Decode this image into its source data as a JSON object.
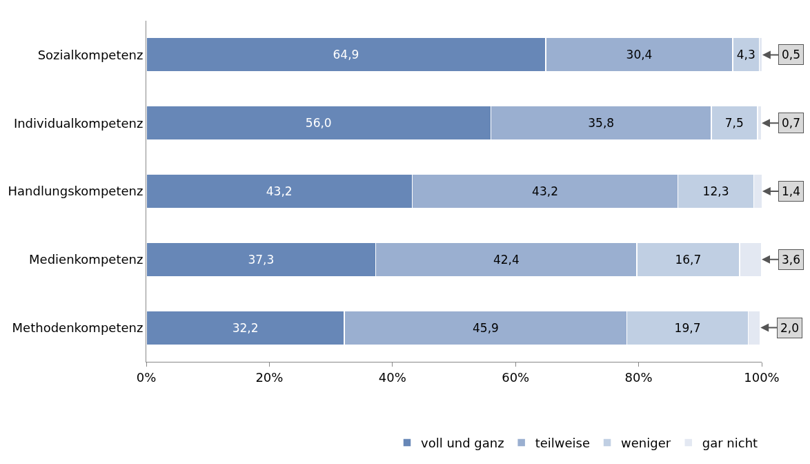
{
  "chart_data": {
    "type": "bar",
    "orientation": "horizontal",
    "stacked": true,
    "categories": [
      "Sozialkompetenz",
      "Individualkompetenz",
      "Handlungskompetenz",
      "Medienkompetenz",
      "Methodenkompetenz"
    ],
    "series": [
      {
        "name": "voll und ganz",
        "color": "#6787b7",
        "values": [
          64.9,
          56.0,
          43.2,
          37.3,
          32.2
        ],
        "value_labels": [
          "64,9",
          "56,0",
          "43,2",
          "37,3",
          "32,2"
        ]
      },
      {
        "name": "teilweise",
        "color": "#9aafd0",
        "values": [
          30.4,
          35.8,
          43.2,
          42.4,
          45.9
        ],
        "value_labels": [
          "30,4",
          "35,8",
          "43,2",
          "42,4",
          "45,9"
        ]
      },
      {
        "name": "weniger",
        "color": "#c0cfe3",
        "values": [
          4.3,
          7.5,
          12.3,
          16.7,
          19.7
        ],
        "value_labels": [
          "4,3",
          "7,5",
          "12,3",
          "16,7",
          "19,7"
        ]
      },
      {
        "name": "gar nicht",
        "color": "#e3e8f2",
        "values": [
          0.5,
          0.7,
          1.4,
          3.6,
          2.0
        ],
        "value_labels": [
          "0,5",
          "0,7",
          "1,4",
          "3,6",
          "2,0"
        ]
      }
    ],
    "xlim": [
      0,
      100
    ],
    "xticks": [
      {
        "value": 0,
        "label": "0%"
      },
      {
        "value": 20,
        "label": "20%"
      },
      {
        "value": 40,
        "label": "40%"
      },
      {
        "value": 60,
        "label": "60%"
      },
      {
        "value": 80,
        "label": "80%"
      },
      {
        "value": 100,
        "label": "100%"
      }
    ],
    "legend": "bottom"
  }
}
